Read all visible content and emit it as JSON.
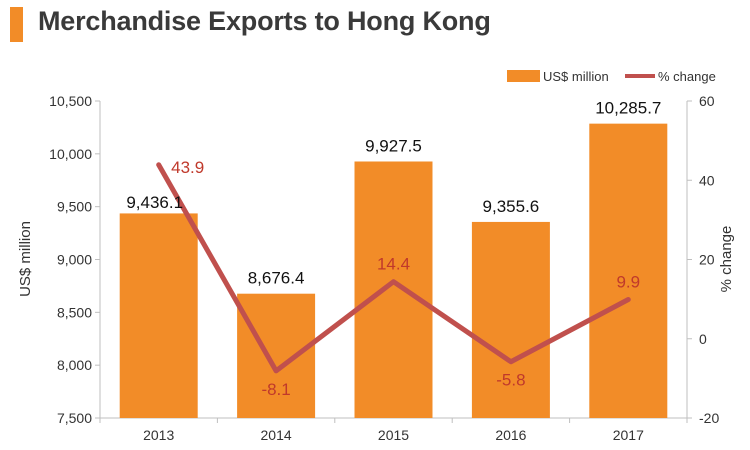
{
  "title": "Merchandise Exports to Hong Kong",
  "colors": {
    "bar": "#f28c28",
    "line": "#c0504d",
    "line_label": "#c0392b",
    "title_accent": "#f28c28",
    "text": "#333333"
  },
  "chart_data": {
    "type": "bar",
    "categories": [
      "2013",
      "2014",
      "2015",
      "2016",
      "2017"
    ],
    "series": [
      {
        "name": "US$ million",
        "type": "bar",
        "axis": "left",
        "values": [
          9436.1,
          8676.4,
          9927.5,
          9355.6,
          10285.7
        ],
        "labels": [
          "9,436.1",
          "8,676.4",
          "9,927.5",
          "9,355.6",
          "10,285.7"
        ]
      },
      {
        "name": "% change",
        "type": "line",
        "axis": "right",
        "values": [
          43.9,
          -8.1,
          14.4,
          -5.8,
          9.9
        ],
        "labels": [
          "43.9",
          "-8.1",
          "14.4",
          "-5.8",
          "9.9"
        ]
      }
    ],
    "ylabel": "US$ million",
    "ylim": [
      7500,
      10500
    ],
    "yticks": [
      "7,500",
      "8,000",
      "8,500",
      "9,000",
      "9,500",
      "10,000",
      "10,500"
    ],
    "ytick_values": [
      7500,
      8000,
      8500,
      9000,
      9500,
      10000,
      10500
    ],
    "y2label": "% change",
    "y2lim": [
      -20,
      60
    ],
    "y2ticks": [
      "-20",
      "0",
      "20",
      "40",
      "60"
    ],
    "y2tick_values": [
      -20,
      0,
      20,
      40,
      60
    ],
    "grid": false,
    "legend": "top-right"
  }
}
